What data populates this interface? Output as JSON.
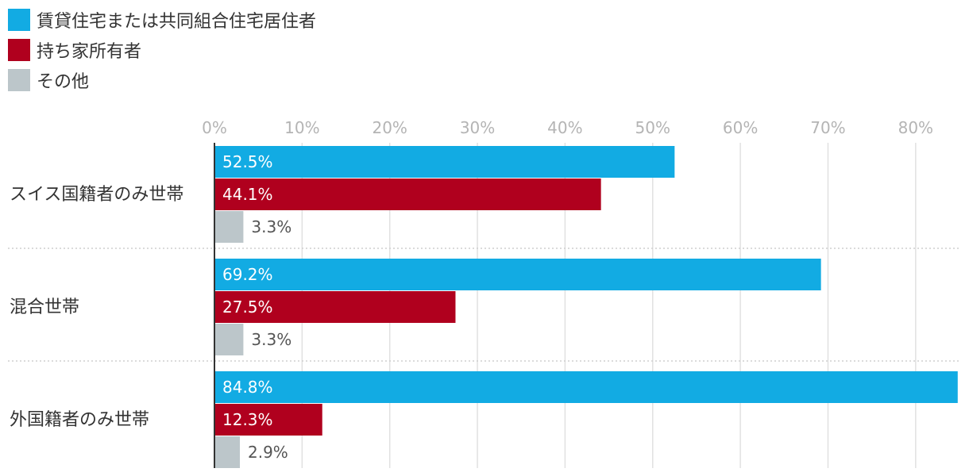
{
  "legend": {
    "items": [
      {
        "label": "賃貸住宅または共同組合住宅居住者",
        "color": "#12abe3"
      },
      {
        "label": "持ち家所有者",
        "color": "#b0001e"
      },
      {
        "label": "その他",
        "color": "#bcc6ca"
      }
    ]
  },
  "chart_data": {
    "type": "bar",
    "orientation": "horizontal",
    "categories": [
      "スイス国籍者のみ世帯",
      "混合世帯",
      "外国籍者のみ世帯"
    ],
    "series": [
      {
        "name": "賃貸住宅または共同組合住宅居住者",
        "color": "#12abe3",
        "values": [
          52.5,
          69.2,
          84.8
        ]
      },
      {
        "name": "持ち家所有者",
        "color": "#b0001e",
        "values": [
          44.1,
          27.5,
          12.3
        ]
      },
      {
        "name": "その他",
        "color": "#bcc6ca",
        "values": [
          3.3,
          3.3,
          2.9
        ]
      }
    ],
    "xlim": [
      0,
      85
    ],
    "ticks": [
      "0%",
      "10%",
      "20%",
      "30%",
      "40%",
      "50%",
      "60%",
      "70%",
      "80%"
    ],
    "tick_values": [
      0,
      10,
      20,
      30,
      40,
      50,
      60,
      70,
      80
    ],
    "value_suffix": "%",
    "grid": true,
    "legend_position": "top-left"
  }
}
